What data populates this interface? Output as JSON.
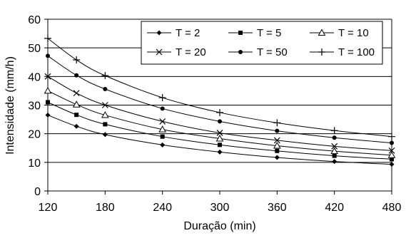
{
  "chart_data": {
    "type": "line",
    "title": "",
    "xlabel": "Duração (min)",
    "ylabel": "Intensidade (mm/h)",
    "x": [
      120,
      150,
      180,
      240,
      300,
      360,
      420,
      480
    ],
    "xlim": [
      120,
      480
    ],
    "xticks": [
      120,
      180,
      240,
      300,
      360,
      420,
      480
    ],
    "ylim": [
      0,
      60
    ],
    "yticks": [
      0,
      10,
      20,
      30,
      40,
      50,
      60
    ],
    "grid": "horizontal",
    "legend_position": "top-right",
    "series": [
      {
        "name": "T = 2",
        "marker": "diamond",
        "values": [
          26.5,
          22.6,
          19.7,
          16.1,
          13.6,
          11.7,
          10.3,
          9.3
        ]
      },
      {
        "name": "T = 5",
        "marker": "square",
        "values": [
          31.0,
          26.6,
          23.3,
          19.0,
          16.1,
          14.0,
          12.3,
          11.1
        ]
      },
      {
        "name": "T = 10",
        "marker": "triangle",
        "values": [
          35.0,
          30.2,
          26.5,
          21.5,
          18.3,
          15.8,
          13.9,
          12.5
        ]
      },
      {
        "name": "T = 20",
        "marker": "x",
        "values": [
          40.0,
          34.2,
          30.0,
          24.3,
          20.3,
          17.7,
          15.6,
          14.1
        ]
      },
      {
        "name": "T = 50",
        "marker": "circle",
        "values": [
          47.2,
          40.4,
          35.6,
          28.8,
          24.3,
          21.0,
          18.6,
          16.8
        ]
      },
      {
        "name": "T = 100",
        "marker": "plus",
        "values": [
          53.3,
          45.8,
          40.3,
          32.6,
          27.4,
          23.8,
          21.1,
          19.0
        ]
      }
    ]
  }
}
